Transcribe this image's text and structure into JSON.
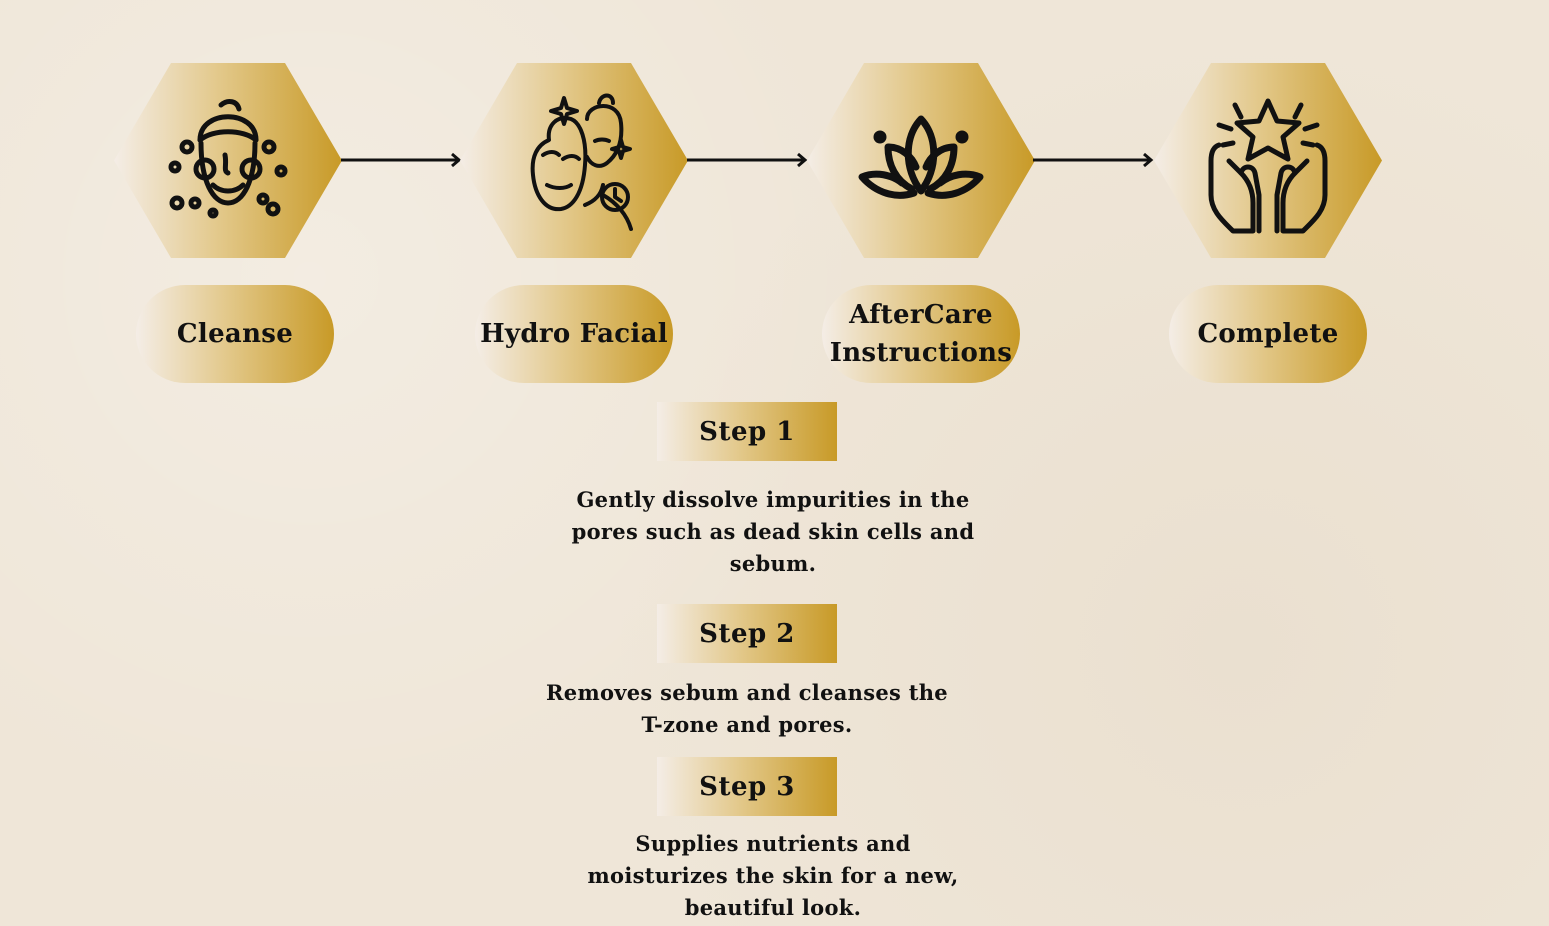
{
  "flow": {
    "stages": [
      {
        "icon": "face-towel-icon",
        "label_lines": [
          "Cleanse"
        ]
      },
      {
        "icon": "face-mask-icon",
        "label_lines": [
          "Hydro Facial"
        ]
      },
      {
        "icon": "lotus-icon",
        "label_lines": [
          "AfterCare",
          "Instructions"
        ]
      },
      {
        "icon": "hands-star-icon",
        "label_lines": [
          "Complete"
        ]
      }
    ]
  },
  "steps": [
    {
      "title": "Step 1",
      "description_lines": [
        "Gently dissolve impurities in the",
        "pores such as dead skin cells and",
        "sebum."
      ]
    },
    {
      "title": "Step 2",
      "description_lines": [
        "Removes sebum and cleanses the",
        "T-zone and pores."
      ]
    },
    {
      "title": "Step 3",
      "description_lines": [
        "Supplies nutrients and",
        "moisturizes the skin for a new,",
        "beautiful look."
      ]
    }
  ],
  "colors": {
    "gold": "#c89a27",
    "light": "#f4ede6",
    "background": "#efe6d8",
    "ink": "#111111"
  }
}
